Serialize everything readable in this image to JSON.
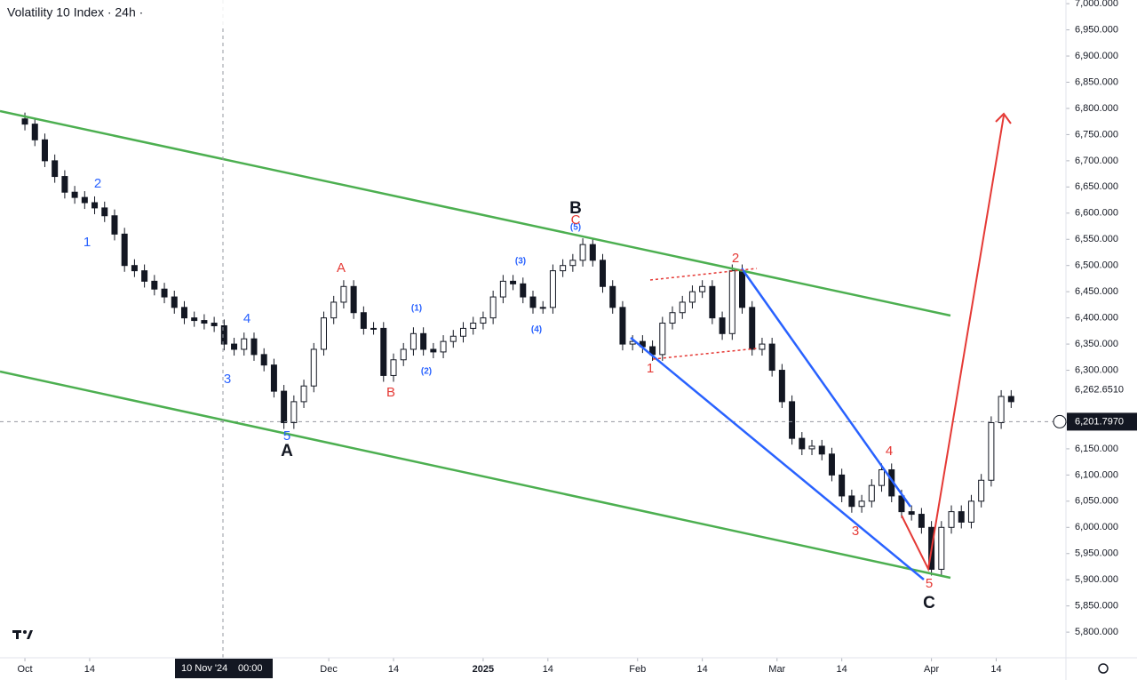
{
  "chart_data": {
    "type": "candlestick",
    "title": "Volatility 10 Index · 24h ·",
    "x": [
      "2024-10-01",
      "2024-10-03",
      "2024-10-05",
      "2024-10-07",
      "2024-10-09",
      "2024-10-11",
      "2024-10-13",
      "2024-10-15",
      "2024-10-17",
      "2024-10-19",
      "2024-10-21",
      "2024-10-23",
      "2024-10-25",
      "2024-10-27",
      "2024-10-29",
      "2024-10-31",
      "2024-11-02",
      "2024-11-04",
      "2024-11-06",
      "2024-11-08",
      "2024-11-10",
      "2024-11-12",
      "2024-11-14",
      "2024-11-16",
      "2024-11-18",
      "2024-11-20",
      "2024-11-22",
      "2024-11-24",
      "2024-11-26",
      "2024-11-28",
      "2024-11-30",
      "2024-12-02",
      "2024-12-04",
      "2024-12-06",
      "2024-12-08",
      "2024-12-10",
      "2024-12-12",
      "2024-12-14",
      "2024-12-16",
      "2024-12-18",
      "2024-12-20",
      "2024-12-22",
      "2024-12-24",
      "2024-12-26",
      "2024-12-28",
      "2024-12-30",
      "2025-01-01",
      "2025-01-03",
      "2025-01-05",
      "2025-01-07",
      "2025-01-09",
      "2025-01-11",
      "2025-01-13",
      "2025-01-15",
      "2025-01-17",
      "2025-01-19",
      "2025-01-21",
      "2025-01-23",
      "2025-01-25",
      "2025-01-27",
      "2025-01-29",
      "2025-01-31",
      "2025-02-02",
      "2025-02-04",
      "2025-02-06",
      "2025-02-08",
      "2025-02-10",
      "2025-02-12",
      "2025-02-14",
      "2025-02-16",
      "2025-02-18",
      "2025-02-20",
      "2025-02-22",
      "2025-02-24",
      "2025-02-26",
      "2025-02-28",
      "2025-03-02",
      "2025-03-04",
      "2025-03-06",
      "2025-03-08",
      "2025-03-10",
      "2025-03-12",
      "2025-03-14",
      "2025-03-16",
      "2025-03-18",
      "2025-03-20",
      "2025-03-22",
      "2025-03-24",
      "2025-03-26",
      "2025-03-28",
      "2025-03-30",
      "2025-04-01",
      "2025-04-03",
      "2025-04-05",
      "2025-04-07",
      "2025-04-09",
      "2025-04-11",
      "2025-04-13",
      "2025-04-15",
      "2025-04-17"
    ],
    "open": [
      6780,
      6770,
      6740,
      6700,
      6670,
      6640,
      6630,
      6620,
      6610,
      6595,
      6560,
      6500,
      6490,
      6470,
      6455,
      6440,
      6420,
      6400,
      6395,
      6390,
      6385,
      6350,
      6340,
      6360,
      6330,
      6310,
      6260,
      6200,
      6240,
      6270,
      6340,
      6400,
      6430,
      6460,
      6410,
      6380,
      6380,
      6290,
      6320,
      6340,
      6370,
      6340,
      6335,
      6355,
      6365,
      6380,
      6390,
      6400,
      6440,
      6470,
      6465,
      6440,
      6420,
      6420,
      6490,
      6500,
      6510,
      6540,
      6510,
      6460,
      6420,
      6350,
      6355,
      6345,
      6330,
      6390,
      6410,
      6430,
      6450,
      6460,
      6400,
      6370,
      6490,
      6420,
      6340,
      6350,
      6300,
      6240,
      6170,
      6150,
      6155,
      6140,
      6100,
      6060,
      6040,
      6050,
      6080,
      6110,
      6060,
      6030,
      6025,
      6000,
      5920,
      6000,
      6030,
      6010,
      6050,
      6090,
      6200,
      6250
    ],
    "high": [
      6792,
      6782,
      6752,
      6712,
      6682,
      6652,
      6642,
      6632,
      6622,
      6607,
      6572,
      6512,
      6502,
      6482,
      6467,
      6452,
      6432,
      6412,
      6407,
      6402,
      6397,
      6362,
      6372,
      6372,
      6342,
      6322,
      6272,
      6252,
      6282,
      6352,
      6412,
      6442,
      6472,
      6472,
      6422,
      6392,
      6392,
      6332,
      6352,
      6382,
      6382,
      6352,
      6367,
      6377,
      6392,
      6402,
      6412,
      6452,
      6482,
      6482,
      6477,
      6452,
      6432,
      6502,
      6512,
      6522,
      6552,
      6552,
      6522,
      6472,
      6432,
      6367,
      6367,
      6357,
      6402,
      6422,
      6442,
      6462,
      6472,
      6472,
      6412,
      6502,
      6502,
      6432,
      6362,
      6362,
      6312,
      6252,
      6182,
      6167,
      6167,
      6152,
      6112,
      6072,
      6062,
      6092,
      6122,
      6122,
      6072,
      6042,
      6037,
      6012,
      6012,
      6042,
      6042,
      6062,
      6102,
      6212,
      6262,
      6262
    ],
    "low": [
      6758,
      6728,
      6688,
      6658,
      6628,
      6618,
      6608,
      6598,
      6583,
      6548,
      6488,
      6478,
      6458,
      6443,
      6428,
      6408,
      6388,
      6383,
      6378,
      6373,
      6338,
      6328,
      6328,
      6318,
      6298,
      6248,
      6188,
      6188,
      6228,
      6258,
      6328,
      6388,
      6418,
      6398,
      6368,
      6368,
      6278,
      6278,
      6308,
      6328,
      6328,
      6323,
      6323,
      6343,
      6353,
      6368,
      6378,
      6388,
      6428,
      6453,
      6428,
      6408,
      6408,
      6408,
      6478,
      6488,
      6498,
      6498,
      6448,
      6408,
      6338,
      6338,
      6333,
      6318,
      6318,
      6378,
      6398,
      6418,
      6438,
      6388,
      6358,
      6358,
      6408,
      6328,
      6328,
      6288,
      6228,
      6158,
      6138,
      6138,
      6128,
      6088,
      6048,
      6028,
      6028,
      6038,
      6068,
      6048,
      6018,
      6013,
      5988,
      5908,
      5908,
      5988,
      5998,
      5998,
      6038,
      6078,
      6188,
      6228
    ],
    "close": [
      6770,
      6740,
      6700,
      6670,
      6640,
      6630,
      6620,
      6610,
      6595,
      6560,
      6500,
      6490,
      6470,
      6455,
      6440,
      6420,
      6400,
      6395,
      6390,
      6385,
      6350,
      6340,
      6360,
      6330,
      6310,
      6260,
      6200,
      6240,
      6270,
      6340,
      6400,
      6430,
      6460,
      6410,
      6380,
      6380,
      6290,
      6320,
      6340,
      6370,
      6340,
      6335,
      6355,
      6365,
      6380,
      6390,
      6400,
      6440,
      6470,
      6465,
      6440,
      6420,
      6420,
      6490,
      6500,
      6510,
      6540,
      6510,
      6460,
      6420,
      6350,
      6355,
      6345,
      6330,
      6390,
      6410,
      6430,
      6450,
      6460,
      6400,
      6370,
      6490,
      6420,
      6340,
      6350,
      6300,
      6240,
      6170,
      6150,
      6155,
      6140,
      6100,
      6060,
      6040,
      6050,
      6080,
      6110,
      6060,
      6030,
      6025,
      6000,
      5920,
      6000,
      6030,
      6010,
      6050,
      6090,
      6200,
      6250,
      6240
    ],
    "up_color": "#ffffff",
    "down_color": "#131722",
    "wick_color": "#131722",
    "xlim": [
      "2024-09-26",
      "2025-04-28"
    ],
    "xticks": [
      {
        "value": "2024-10-01",
        "label": "Oct"
      },
      {
        "value": "2024-10-14",
        "label": "14"
      },
      {
        "value": "2024-12-01",
        "label": "Dec"
      },
      {
        "value": "2024-12-14",
        "label": "14"
      },
      {
        "value": "2025-01-01",
        "label": "2025"
      },
      {
        "value": "2025-01-14",
        "label": "14"
      },
      {
        "value": "2025-02-01",
        "label": "Feb"
      },
      {
        "value": "2025-02-14",
        "label": "14"
      },
      {
        "value": "2025-03-01",
        "label": "Mar"
      },
      {
        "value": "2025-03-14",
        "label": "14"
      },
      {
        "value": "2025-04-01",
        "label": "Apr"
      },
      {
        "value": "2025-04-14",
        "label": "14"
      }
    ],
    "ylim": [
      5751,
      7007
    ],
    "yticks": [
      {
        "value": 5800,
        "label": "5,800.000"
      },
      {
        "value": 5850,
        "label": "5,850.000"
      },
      {
        "value": 5900,
        "label": "5,900.000"
      },
      {
        "value": 5950,
        "label": "5,950.000"
      },
      {
        "value": 6000,
        "label": "6,000.000"
      },
      {
        "value": 6050,
        "label": "6,050.000"
      },
      {
        "value": 6100,
        "label": "6,100.000"
      },
      {
        "value": 6150,
        "label": "6,150.000"
      },
      {
        "value": 6200,
        "label": "6,200.000"
      },
      {
        "value": 6300,
        "label": "6,300.000"
      },
      {
        "value": 6350,
        "label": "6,350.000"
      },
      {
        "value": 6400,
        "label": "6,400.000"
      },
      {
        "value": 6450,
        "label": "6,450.000"
      },
      {
        "value": 6500,
        "label": "6,500.000"
      },
      {
        "value": 6550,
        "label": "6,550.000"
      },
      {
        "value": 6600,
        "label": "6,600.000"
      },
      {
        "value": 6650,
        "label": "6,650.000"
      },
      {
        "value": 6700,
        "label": "6,700.000"
      },
      {
        "value": 6750,
        "label": "6,750.000"
      },
      {
        "value": 6800,
        "label": "6,800.000"
      },
      {
        "value": 6850,
        "label": "6,850.000"
      },
      {
        "value": 6900,
        "label": "6,900.000"
      },
      {
        "value": 6950,
        "label": "6,950.000"
      },
      {
        "value": 7000,
        "label": "7,000.000"
      }
    ],
    "last_price": {
      "value": 6201.797,
      "label": "6,201.7970"
    },
    "high_price": {
      "value": 6262.651,
      "label": "6,262.6510"
    },
    "crosshair": {
      "date": "10 Nov '24",
      "time": "00:00"
    },
    "annotations": [
      "2",
      "1",
      "4",
      "3",
      "5",
      "A",
      "A",
      "B",
      "(1)",
      "(2)",
      "(3)",
      "(4)",
      "(5)",
      "C",
      "B",
      "2",
      "1",
      "3",
      "4",
      "5",
      "C"
    ]
  }
}
